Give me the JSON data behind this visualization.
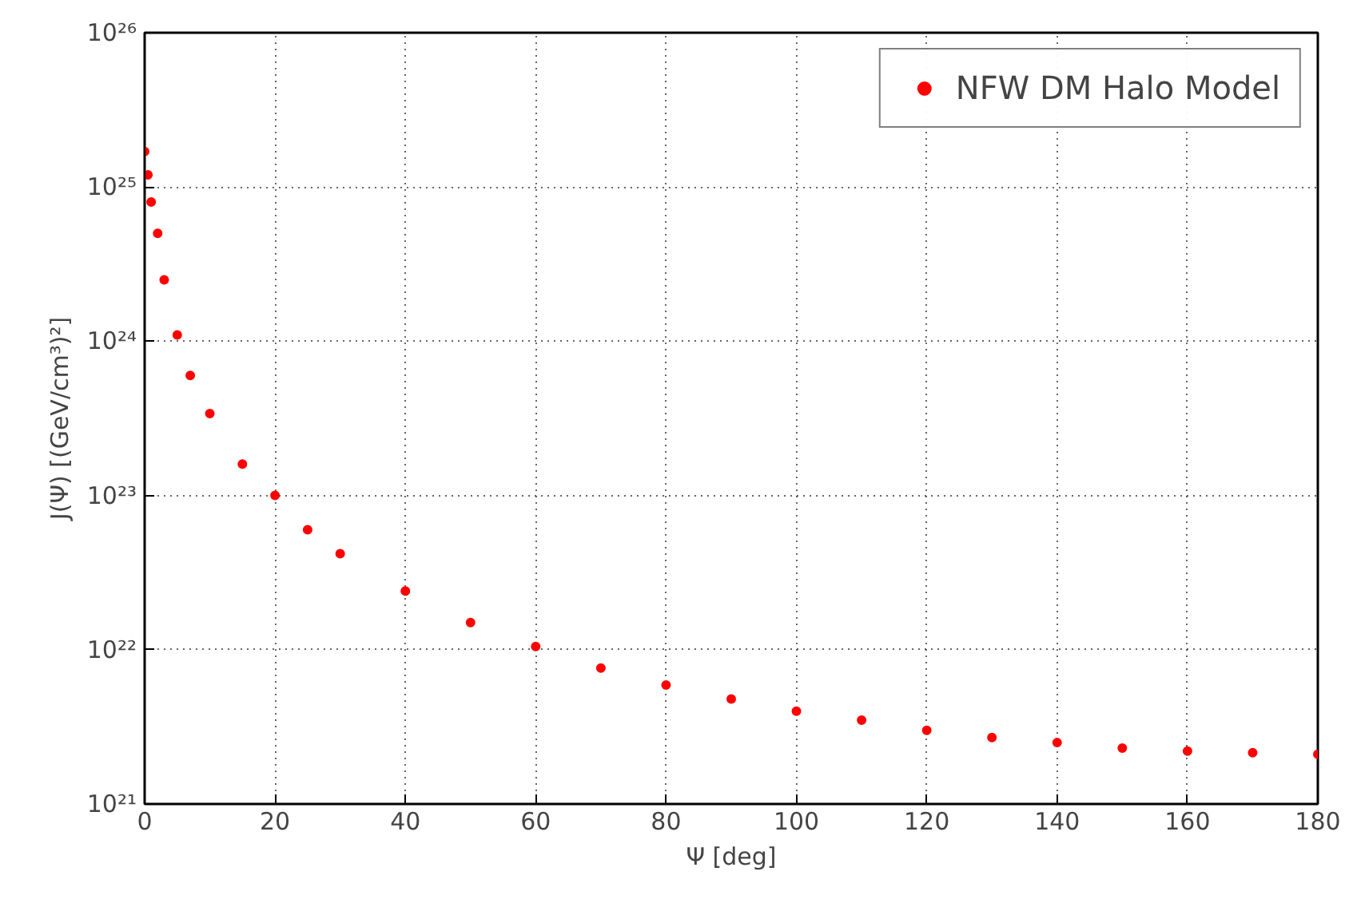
{
  "chart_data": {
    "type": "scatter",
    "xlabel": "Ψ [deg]",
    "ylabel": "J(Ψ) [(GeV/cm³)²]",
    "x": [
      0,
      0.5,
      1,
      2,
      3,
      5,
      7,
      10,
      15,
      20,
      25,
      30,
      40,
      50,
      60,
      70,
      80,
      90,
      100,
      110,
      120,
      130,
      140,
      150,
      160,
      170,
      180
    ],
    "series": [
      {
        "name": "NFW DM Halo Model",
        "color": "#ff0000",
        "values": [
          1.7e+25,
          1.2e+25,
          8e+24,
          5e+24,
          2.5e+24,
          1.1e+24,
          6e+23,
          3.4e+23,
          1.6e+23,
          1e+23,
          6e+22,
          4.2e+22,
          2.4e+22,
          1.5e+22,
          1.05e+22,
          7.6e+21,
          5.9e+21,
          4.8e+21,
          4e+21,
          3.5e+21,
          3e+21,
          2.7e+21,
          2.5e+21,
          2.3e+21,
          2.2e+21,
          2.15e+21,
          2.1e+21
        ]
      }
    ],
    "xlim": [
      0,
      180
    ],
    "xticks": [
      0,
      20,
      40,
      60,
      80,
      100,
      120,
      140,
      160,
      180
    ],
    "ylim": [
      1e+21,
      1e+26
    ],
    "yticks": [
      {
        "value": 1e+21,
        "label": "10²¹"
      },
      {
        "value": 1e+22,
        "label": "10²²"
      },
      {
        "value": 1e+23,
        "label": "10²³"
      },
      {
        "value": 1e+24,
        "label": "10²⁴"
      },
      {
        "value": 1e+25,
        "label": "10²⁵"
      },
      {
        "value": 1e+26,
        "label": "10²⁶"
      }
    ],
    "log": "y",
    "grid": true,
    "legend": "top right",
    "marker": "circle"
  }
}
